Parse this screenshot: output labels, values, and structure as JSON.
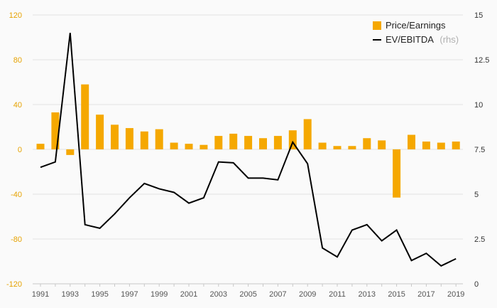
{
  "colors": {
    "bar": "#f5a800",
    "line": "#000000",
    "grid": "#e3e3e3",
    "left_tick": "#e6a200",
    "background": "#fafafa"
  },
  "chart_data": {
    "type": "bar+line",
    "title": "",
    "xlabel": "",
    "ylabel": "",
    "x": [
      1991,
      1992,
      1993,
      1994,
      1995,
      1996,
      1997,
      1998,
      1999,
      2000,
      2001,
      2002,
      2003,
      2004,
      2005,
      2006,
      2007,
      2008,
      2009,
      2010,
      2011,
      2012,
      2013,
      2014,
      2015,
      2016,
      2017,
      2018,
      2019
    ],
    "x_tick_labels": [
      "1991",
      "1993",
      "1995",
      "1997",
      "1999",
      "2001",
      "2003",
      "2005",
      "2007",
      "2009",
      "2011",
      "2013",
      "2015",
      "2017",
      "2019"
    ],
    "y_left": {
      "range": [
        -120,
        120
      ],
      "ticks": [
        "120",
        "80",
        "40",
        "0",
        "-40",
        "-80",
        "-120"
      ]
    },
    "y_right": {
      "range": [
        0,
        15
      ],
      "ticks": [
        "15",
        "12.5",
        "10",
        "7.5",
        "5",
        "2.5",
        "0"
      ]
    },
    "grid": true,
    "legend_position": "top-right",
    "series": [
      {
        "name": "Price/Earnings",
        "type": "bar",
        "axis": "left",
        "values": [
          5,
          33,
          -5,
          58,
          31,
          22,
          19,
          16,
          18,
          6,
          5,
          4,
          12,
          14,
          12,
          10,
          12,
          17,
          27,
          6,
          3,
          3,
          10,
          8,
          -43,
          13,
          7,
          6,
          7
        ]
      },
      {
        "name": "EV/EBITDA",
        "axis_note": "(rhs)",
        "type": "line",
        "axis": "right",
        "values": [
          6.5,
          6.8,
          14.0,
          3.3,
          3.1,
          3.9,
          4.8,
          5.6,
          5.3,
          5.1,
          4.5,
          4.8,
          6.8,
          6.75,
          5.9,
          5.9,
          5.8,
          7.9,
          6.7,
          2.0,
          1.5,
          3.0,
          3.3,
          2.4,
          3.0,
          1.3,
          1.7,
          1.0,
          1.4
        ]
      }
    ]
  }
}
